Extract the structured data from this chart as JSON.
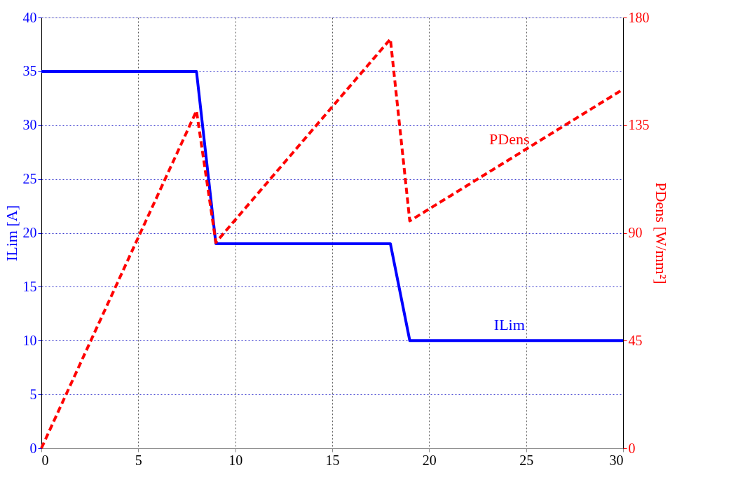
{
  "chart_data": {
    "type": "line",
    "ylabel": "ILim [A]",
    "y2label": "PDens [W/mm²]",
    "xlim": [
      0,
      30
    ],
    "xticks": [
      0,
      5,
      10,
      15,
      20,
      25,
      30
    ],
    "ylim": [
      0,
      40
    ],
    "yticks": [
      0,
      5,
      10,
      15,
      20,
      25,
      30,
      35,
      40
    ],
    "y2lim": [
      0,
      180
    ],
    "y2ticks": [
      0,
      45,
      90,
      135,
      180
    ],
    "grid": true,
    "series": [
      {
        "name": "ILim",
        "color": "#0000ff",
        "line_style": "solid",
        "x": [
          0,
          8,
          9,
          18,
          19,
          30
        ],
        "values": [
          35,
          35,
          19,
          19,
          10,
          10
        ]
      },
      {
        "name": "PDens",
        "color": "#ff0000",
        "line_style": "dashed",
        "axis": "y2",
        "x": [
          0,
          8,
          9,
          18,
          19,
          30
        ],
        "values": [
          0,
          141,
          86,
          171,
          95,
          150
        ]
      }
    ]
  }
}
